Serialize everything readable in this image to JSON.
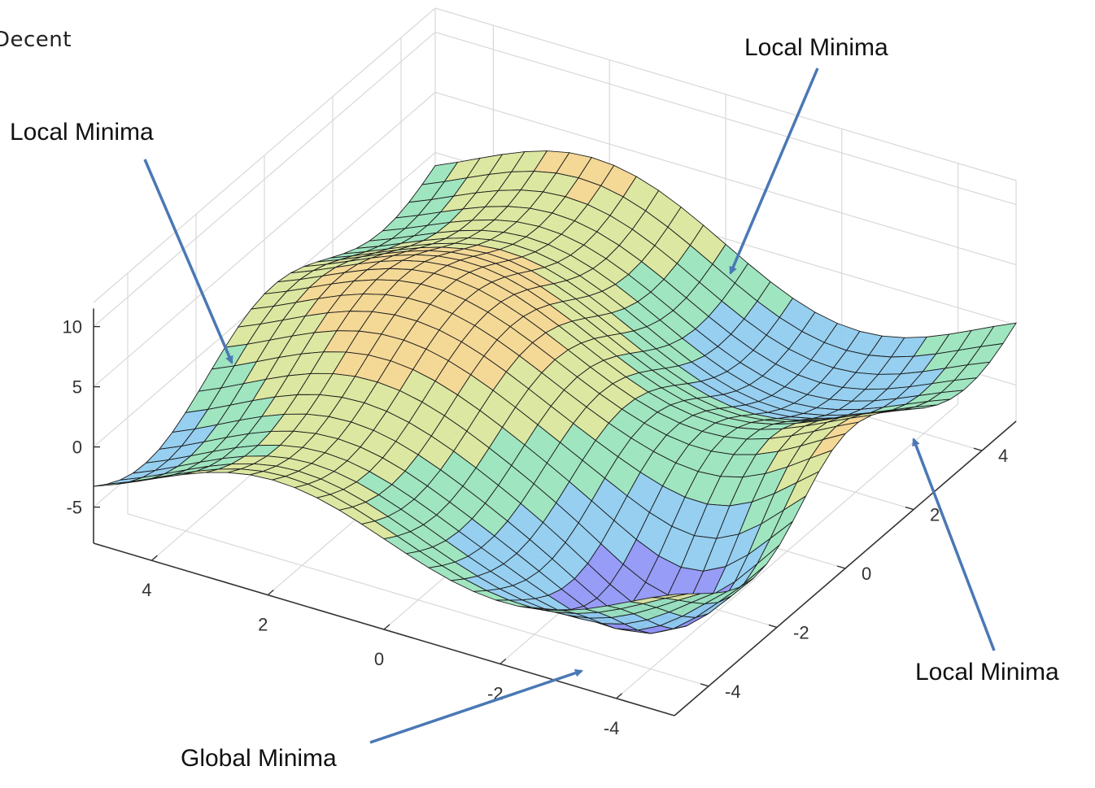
{
  "page": {
    "title_fragment": "Decent"
  },
  "chart_data": {
    "type": "surface",
    "z_ticks": [
      "10",
      "5",
      "0",
      "-5"
    ],
    "x_ticks": [
      "4",
      "2",
      "0",
      "-2",
      "-4"
    ],
    "y_ticks": [
      "4",
      "2",
      "0",
      "-2",
      "-4"
    ],
    "zlim": [
      -8,
      12
    ],
    "xlim": [
      -5,
      5
    ],
    "ylim": [
      -5,
      5
    ],
    "grid": true,
    "colormap": [
      "#8f95f5",
      "#8ecbef",
      "#98e3bb",
      "#d9e59a",
      "#f3d58e"
    ],
    "annotations": [
      {
        "id": "local-top-left",
        "text": "Local Minima"
      },
      {
        "id": "local-top-right",
        "text": "Local Minima"
      },
      {
        "id": "local-right",
        "text": "Local Minima"
      },
      {
        "id": "global",
        "text": "Global Minima"
      }
    ]
  },
  "colors": {
    "arrow": "#4a78b5",
    "mesh_line": "#1b1b1b",
    "axis": "#333333",
    "grid": "#d8d8d8"
  }
}
